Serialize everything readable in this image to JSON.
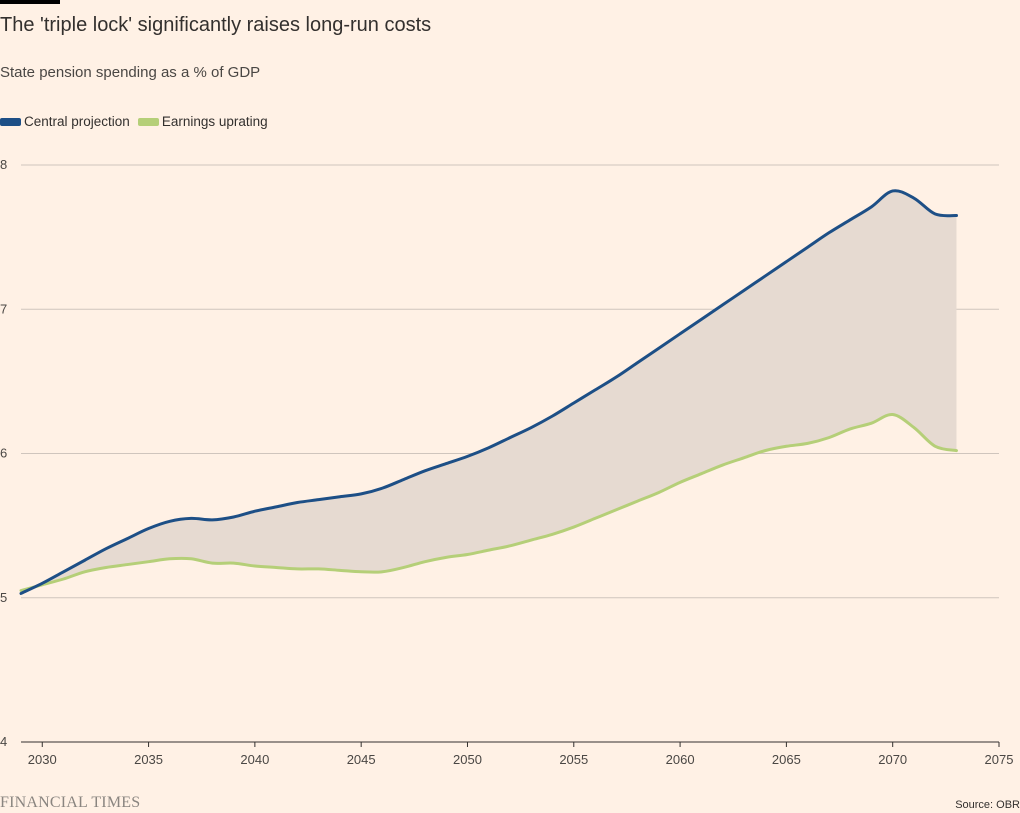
{
  "header": {
    "title": "The 'triple lock' significantly raises long-run costs",
    "subtitle": "State pension spending as a % of GDP"
  },
  "colors": {
    "central": "#1d4f86",
    "earnings": "#b5cf78",
    "band": "#e6dad1",
    "grid": "#cfc5bd",
    "axis": "#33302e"
  },
  "legend": [
    {
      "label": "Central projection",
      "color": "#1d4f86"
    },
    {
      "label": "Earnings uprating",
      "color": "#b5cf78"
    }
  ],
  "chart_data": {
    "type": "area",
    "title": "The 'triple lock' significantly raises long-run costs",
    "subtitle": "State pension spending as a % of GDP",
    "xlabel": "",
    "ylabel": "",
    "xlim": [
      2029,
      2075
    ],
    "ylim": [
      4,
      8
    ],
    "x_ticks": [
      2030,
      2035,
      2040,
      2045,
      2050,
      2055,
      2060,
      2065,
      2070,
      2075
    ],
    "y_ticks": [
      4,
      5,
      6,
      7,
      8
    ],
    "grid": true,
    "legend_position": "top-left",
    "shaded_band_between_series": true,
    "series": [
      {
        "name": "Central projection",
        "x": [
          2029,
          2030,
          2031,
          2032,
          2033,
          2034,
          2035,
          2036,
          2037,
          2038,
          2039,
          2040,
          2041,
          2042,
          2043,
          2044,
          2045,
          2046,
          2047,
          2048,
          2049,
          2050,
          2051,
          2052,
          2053,
          2054,
          2055,
          2056,
          2057,
          2058,
          2059,
          2060,
          2061,
          2062,
          2063,
          2064,
          2065,
          2066,
          2067,
          2068,
          2069,
          2070,
          2071,
          2072,
          2073
        ],
        "values": [
          5.03,
          5.1,
          5.18,
          5.26,
          5.34,
          5.41,
          5.48,
          5.53,
          5.55,
          5.54,
          5.56,
          5.6,
          5.63,
          5.66,
          5.68,
          5.7,
          5.72,
          5.76,
          5.82,
          5.88,
          5.93,
          5.98,
          6.04,
          6.11,
          6.18,
          6.26,
          6.35,
          6.44,
          6.53,
          6.63,
          6.73,
          6.83,
          6.93,
          7.03,
          7.13,
          7.23,
          7.33,
          7.43,
          7.53,
          7.62,
          7.71,
          7.82,
          7.77,
          7.66,
          7.65
        ]
      },
      {
        "name": "Earnings uprating",
        "x": [
          2029,
          2030,
          2031,
          2032,
          2033,
          2034,
          2035,
          2036,
          2037,
          2038,
          2039,
          2040,
          2041,
          2042,
          2043,
          2044,
          2045,
          2046,
          2047,
          2048,
          2049,
          2050,
          2051,
          2052,
          2053,
          2054,
          2055,
          2056,
          2057,
          2058,
          2059,
          2060,
          2061,
          2062,
          2063,
          2064,
          2065,
          2066,
          2067,
          2068,
          2069,
          2070,
          2071,
          2072,
          2073
        ],
        "values": [
          5.05,
          5.09,
          5.13,
          5.18,
          5.21,
          5.23,
          5.25,
          5.27,
          5.27,
          5.24,
          5.24,
          5.22,
          5.21,
          5.2,
          5.2,
          5.19,
          5.18,
          5.18,
          5.21,
          5.25,
          5.28,
          5.3,
          5.33,
          5.36,
          5.4,
          5.44,
          5.49,
          5.55,
          5.61,
          5.67,
          5.73,
          5.8,
          5.86,
          5.92,
          5.97,
          6.02,
          6.05,
          6.07,
          6.11,
          6.17,
          6.21,
          6.27,
          6.18,
          6.05,
          6.02
        ]
      }
    ]
  },
  "footer": {
    "brand": "FINANCIAL TIMES",
    "source": "Source: OBR"
  }
}
